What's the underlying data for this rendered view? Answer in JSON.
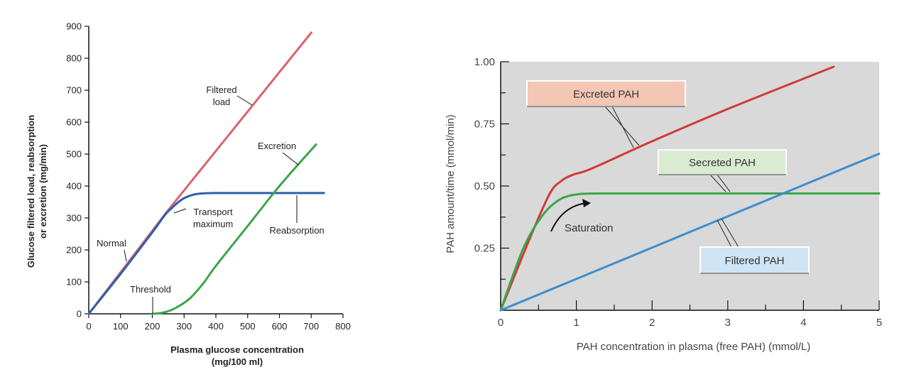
{
  "chart_data": [
    {
      "type": "line",
      "xlabel": "Plasma glucose concentration\n(mg/100 ml)",
      "ylabel": "Glucose filtered load, reabsorption\nor excretion (mg/min)",
      "xlim": [
        0,
        800
      ],
      "ylim": [
        0,
        900
      ],
      "xticks": [
        0,
        100,
        200,
        300,
        400,
        500,
        600,
        700,
        800
      ],
      "yticks": [
        0,
        100,
        200,
        300,
        400,
        500,
        600,
        700,
        800,
        900
      ],
      "grid": false,
      "series": [
        {
          "name": "Filtered load",
          "color": "#d9646e",
          "x": [
            0,
            250,
            700
          ],
          "y": [
            0,
            325,
            880
          ]
        },
        {
          "name": "Reabsorption",
          "color": "#2e5fac",
          "x": [
            0,
            100,
            200,
            240,
            260,
            280,
            300,
            330,
            360,
            400,
            500,
            600,
            740
          ],
          "y": [
            0,
            125,
            255,
            310,
            330,
            348,
            362,
            373,
            377,
            378,
            378,
            378,
            378
          ]
        },
        {
          "name": "Excretion",
          "color": "#3aa64a",
          "x": [
            200,
            230,
            260,
            290,
            320,
            360,
            400,
            500,
            600,
            715
          ],
          "y": [
            0,
            3,
            12,
            28,
            50,
            95,
            150,
            275,
            400,
            530
          ]
        }
      ],
      "annotations": [
        {
          "text": "Filtered\nload",
          "x": 390,
          "y": 660
        },
        {
          "text": "Excretion",
          "x": 620,
          "y": 510
        },
        {
          "text": "Transport\nmaximum",
          "x": 330,
          "y": 285
        },
        {
          "text": "Reabsorption",
          "x": 660,
          "y": 262
        },
        {
          "text": "Normal",
          "x": 70,
          "y": 220
        },
        {
          "text": "Threshold",
          "x": 110,
          "y": 80
        }
      ]
    },
    {
      "type": "line",
      "xlabel": "PAH concentration in plasma (free PAH) (mmol/L)",
      "ylabel": "PAH amount/time (mmol/min)",
      "xlim": [
        0,
        5
      ],
      "ylim": [
        0,
        1.0
      ],
      "xticks": [
        0,
        1,
        2,
        3,
        4,
        5
      ],
      "yticks": [
        0.25,
        0.5,
        0.75,
        1.0
      ],
      "ytick_labels": [
        "0.25",
        "0.50",
        "0.75",
        "1.00"
      ],
      "grid": false,
      "background": "#d9d9d9",
      "series": [
        {
          "name": "Excreted PAH",
          "color": "#cf3a38",
          "x": [
            0,
            0.4,
            0.65,
            0.8,
            0.95,
            1.2,
            2.0,
            3.0,
            4.4
          ],
          "y": [
            0,
            0.3,
            0.47,
            0.52,
            0.545,
            0.57,
            0.68,
            0.81,
            0.98
          ]
        },
        {
          "name": "Secreted PAH",
          "color": "#3aa64a",
          "x": [
            0,
            0.3,
            0.55,
            0.75,
            0.9,
            1.05,
            1.3,
            2.0,
            3.0,
            4.0,
            5.0
          ],
          "y": [
            0,
            0.25,
            0.38,
            0.44,
            0.46,
            0.468,
            0.47,
            0.47,
            0.47,
            0.47,
            0.47
          ]
        },
        {
          "name": "Filtered PAH",
          "color": "#3a8fcf",
          "x": [
            0,
            5
          ],
          "y": [
            0,
            0.63
          ]
        }
      ],
      "annotations": [
        {
          "text": "Saturation",
          "x": 1.35,
          "y": 0.34
        }
      ],
      "legend_boxes": [
        {
          "text": "Excreted PAH",
          "fill": "#f4c6b4"
        },
        {
          "text": "Secreted PAH",
          "fill": "#d9ecd2"
        },
        {
          "text": "Filtered PAH",
          "fill": "#cfe4f4"
        }
      ]
    }
  ]
}
